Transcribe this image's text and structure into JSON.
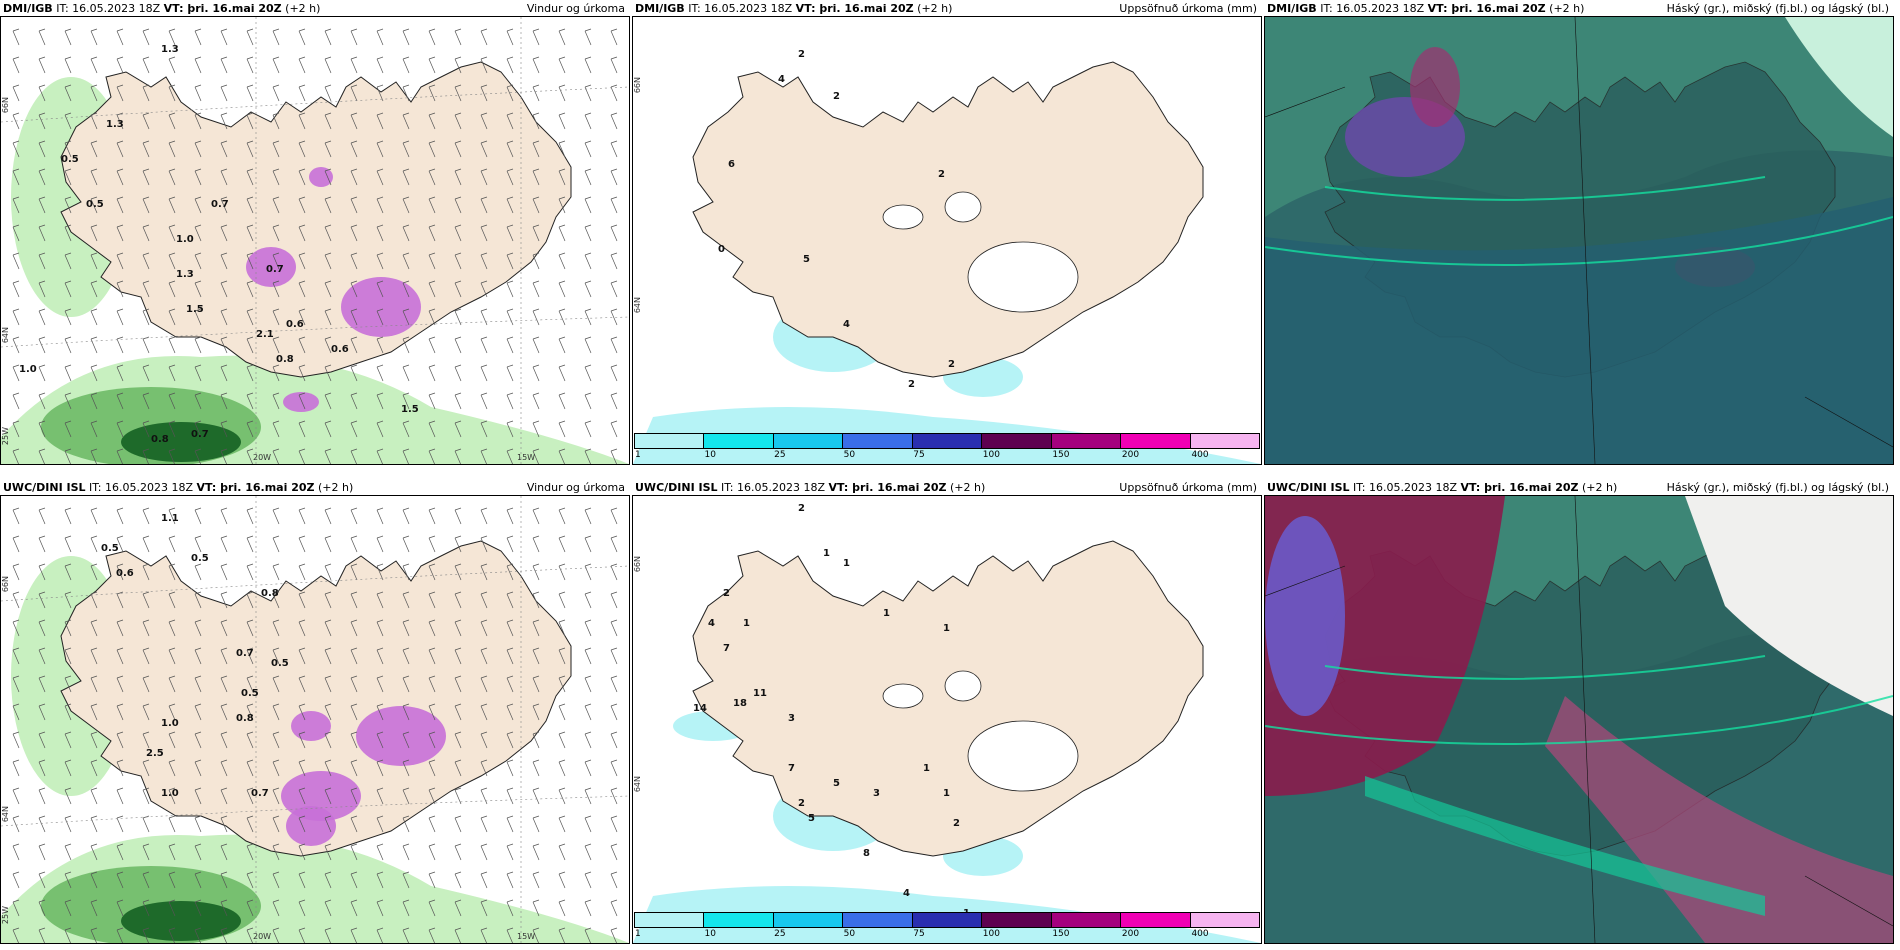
{
  "panels": [
    {
      "model": "DMI/IGB",
      "it": "IT: 16.05.2023 18Z",
      "vt": "VT: þri. 16.mai 20Z",
      "step": "(+2 h)",
      "title": "Vindur og úrkoma"
    },
    {
      "model": "DMI/IGB",
      "it": "IT: 16.05.2023 18Z",
      "vt": "VT: þri. 16.mai 20Z",
      "step": "(+2 h)",
      "title": "Uppsöfnuð úrkoma (mm)"
    },
    {
      "model": "DMI/IGB",
      "it": "IT: 16.05.2023 18Z",
      "vt": "VT: þri. 16.mai 20Z",
      "step": "(+2 h)",
      "title": "Háský (gr.), miðský (fj.bl.) og lágský (bl.)"
    },
    {
      "model": "UWC/DINI ISL",
      "it": "IT: 16.05.2023 18Z",
      "vt": "VT: þri. 16.mai 20Z",
      "step": "(+2 h)",
      "title": "Vindur og úrkoma"
    },
    {
      "model": "UWC/DINI ISL",
      "it": "IT: 16.05.2023 18Z",
      "vt": "VT: þri. 16.mai 20Z",
      "step": "(+2 h)",
      "title": "Uppsöfnuð úrkoma (mm)"
    },
    {
      "model": "UWC/DINI ISL",
      "it": "IT: 16.05.2023 18Z",
      "vt": "VT: þri. 16.mai 20Z",
      "step": "(+2 h)",
      "title": "Háský (gr.), miðský (fj.bl.) og lágský (bl.)"
    }
  ],
  "axis_labels": {
    "lat66": "66N",
    "lat64": "64N",
    "lon25": "25W",
    "lon20": "20W",
    "lon15": "15W"
  },
  "colorbar": {
    "labels": [
      "1",
      "10",
      "25",
      "50",
      "75",
      "100",
      "150",
      "200",
      "400"
    ],
    "colors": [
      "#b6f3f6",
      "#14e6ec",
      "#18c8ee",
      "#3a6ee8",
      "#2a2eb0",
      "#5e0050",
      "#a4007e",
      "#f000b4",
      "#f6b4f0"
    ]
  },
  "wind_precip_values_top": [
    "1.3",
    "0.5",
    "0.5",
    "0.7",
    "1.0",
    "1.3",
    "1.5",
    "2.1",
    "0.6",
    "0.8",
    "1.0",
    "0.7",
    "0.8",
    "1.5",
    "1.3",
    "0.7",
    "0.6"
  ],
  "wind_precip_values_bot": [
    "1.1",
    "0.5",
    "0.5",
    "0.8",
    "0.7",
    "1.0",
    "2.5",
    "0.5",
    "1.0",
    "0.7",
    "0.6",
    "0.8",
    "0.5"
  ],
  "accum_values_top": [
    "2",
    "2",
    "4",
    "6",
    "2",
    "0",
    "5",
    "4",
    "2",
    "2"
  ],
  "accum_values_bot": [
    "2",
    "1",
    "1",
    "2",
    "1",
    "1",
    "1",
    "4",
    "7",
    "14",
    "18",
    "11",
    "3",
    "7",
    "5",
    "3",
    "2",
    "5",
    "1",
    "1",
    "2",
    "8",
    "4",
    "1"
  ],
  "colors": {
    "land": "#f5e6d6",
    "coast": "#222222",
    "sea": "#ffffff"
  }
}
